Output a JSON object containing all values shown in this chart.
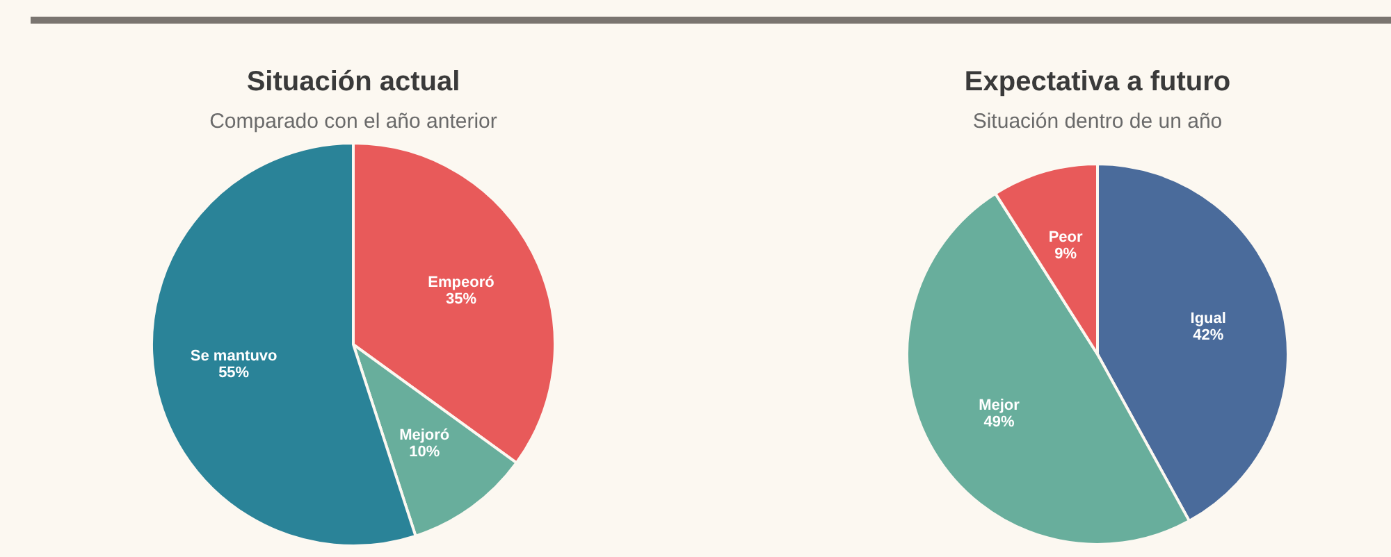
{
  "chart_data": [
    {
      "type": "pie",
      "title": "Situación actual",
      "subtitle": "Comparado con el año anterior",
      "categories": [
        "Empeoró",
        "Mejoró",
        "Se mantuvo"
      ],
      "values": [
        35,
        10,
        55
      ],
      "value_labels": [
        "35%",
        "10%",
        "55%"
      ],
      "colors": [
        "#e85a5a",
        "#68ae9c",
        "#2a8398"
      ]
    },
    {
      "type": "pie",
      "title": "Expectativa a futuro",
      "subtitle": "Situación dentro de un año",
      "categories": [
        "Igual",
        "Mejor",
        "Peor"
      ],
      "values": [
        42,
        49,
        9
      ],
      "value_labels": [
        "42%",
        "49%",
        "9%"
      ],
      "colors": [
        "#4a6b9b",
        "#68ae9c",
        "#e85a5a"
      ]
    }
  ]
}
